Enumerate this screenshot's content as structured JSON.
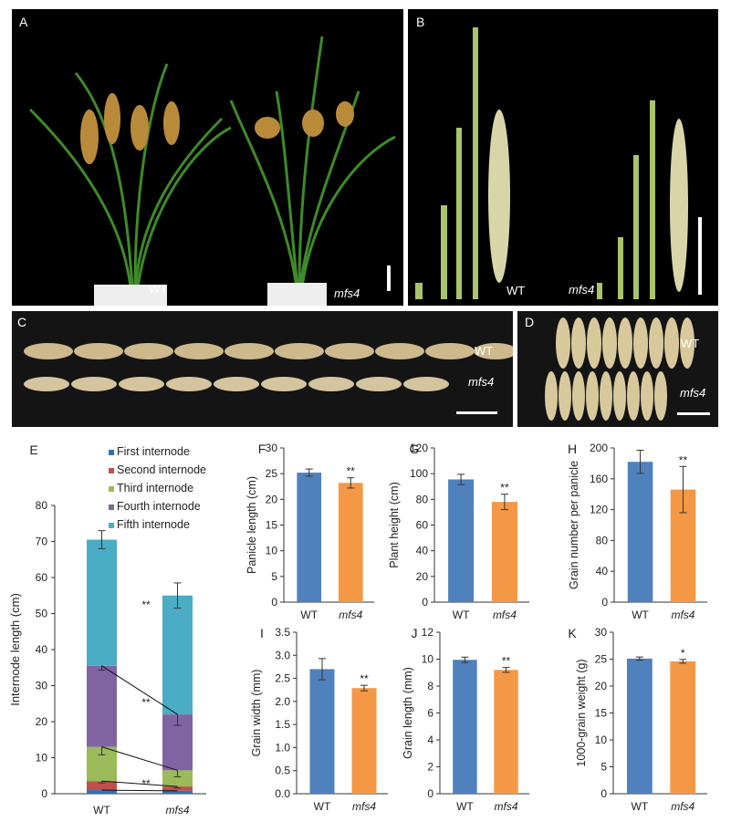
{
  "figure": {
    "panel_a": {
      "letter": "A",
      "label_wt": "WT",
      "label_mut": "mfs4"
    },
    "panel_b": {
      "letter": "B",
      "label_wt": "WT",
      "label_mut": "mfs4"
    },
    "panel_c": {
      "letter": "C",
      "label_wt": "WT",
      "label_mut": "mfs4"
    },
    "panel_d": {
      "letter": "D",
      "label_wt": "WT",
      "label_mut": "mfs4"
    },
    "colors": {
      "wt": "#4f81bd",
      "mutant": "#f59846",
      "first": "#2e75b6",
      "second": "#c0504d",
      "third": "#9bbb59",
      "fourth": "#8064a2",
      "fifth": "#4bacc6"
    }
  },
  "chart_data": [
    {
      "panel": "E",
      "type": "bar",
      "stacked": true,
      "categories": [
        "WT",
        "mfs4"
      ],
      "ylabel": "Internode length (cm)",
      "ylim": [
        0,
        80
      ],
      "yticks": [
        0,
        10,
        20,
        30,
        40,
        50,
        60,
        70,
        80
      ],
      "series": [
        {
          "name": "First internode",
          "values": [
            1.0,
            0.8
          ],
          "errors": [
            0,
            0
          ]
        },
        {
          "name": "Second internode",
          "values": [
            2.5,
            1.2
          ],
          "errors": [
            0.5,
            0.4
          ]
        },
        {
          "name": "Third internode",
          "values": [
            9.5,
            4.5
          ],
          "errors": [
            2.2,
            1.8
          ]
        },
        {
          "name": "Fourth internode",
          "values": [
            22.5,
            15.5
          ],
          "errors": [
            1.2,
            3.0
          ]
        },
        {
          "name": "Fifth  internode",
          "values": [
            35.0,
            33.0
          ],
          "errors": [
            2.5,
            3.5
          ]
        }
      ],
      "annotations": [
        "**",
        "**",
        "**"
      ]
    },
    {
      "panel": "F",
      "type": "bar",
      "categories": [
        "WT",
        "mfs4"
      ],
      "values": [
        25.2,
        23.2
      ],
      "errors": [
        0.7,
        1.0
      ],
      "ylabel": "Panicle length (cm)",
      "ylim": [
        0,
        30
      ],
      "yticks": [
        0,
        5,
        10,
        15,
        20,
        25,
        30
      ],
      "sig": "**"
    },
    {
      "panel": "G",
      "type": "bar",
      "categories": [
        "WT",
        "mfs4"
      ],
      "values": [
        95.5,
        78
      ],
      "errors": [
        4,
        6
      ],
      "ylabel": "Plant height (cm)",
      "ylim": [
        0,
        120
      ],
      "yticks": [
        0,
        20,
        40,
        60,
        80,
        100,
        120
      ],
      "sig": "**"
    },
    {
      "panel": "H",
      "type": "bar",
      "categories": [
        "WT",
        "mfs4"
      ],
      "values": [
        182,
        146
      ],
      "errors": [
        15,
        30
      ],
      "ylabel": "Grain number per panicle",
      "ylim": [
        0,
        200
      ],
      "yticks": [
        0,
        40,
        80,
        120,
        160,
        200
      ],
      "sig": "**"
    },
    {
      "panel": "I",
      "type": "bar",
      "categories": [
        "WT",
        "mfs4"
      ],
      "values": [
        2.7,
        2.29
      ],
      "errors": [
        0.23,
        0.06
      ],
      "ylabel": "Grain width (mm)",
      "ylim": [
        0,
        3.5
      ],
      "yticks": [
        "0.0",
        "0.5",
        "1.0",
        "1.5",
        "2.0",
        "2.5",
        "3.0",
        "3.5"
      ],
      "sig": "**"
    },
    {
      "panel": "J",
      "type": "bar",
      "categories": [
        "WT",
        "mfs4"
      ],
      "values": [
        9.95,
        9.2
      ],
      "errors": [
        0.2,
        0.18
      ],
      "ylabel": "Grain length (mm)",
      "ylim": [
        0,
        12
      ],
      "yticks": [
        0,
        2,
        4,
        6,
        8,
        10,
        12
      ],
      "sig": "**"
    },
    {
      "panel": "K",
      "type": "bar",
      "categories": [
        "WT",
        "mfs4"
      ],
      "values": [
        25.1,
        24.6
      ],
      "errors": [
        0.3,
        0.35
      ],
      "ylabel": "1000-grain weight (g)",
      "ylim": [
        0,
        30
      ],
      "yticks": [
        0,
        5,
        10,
        15,
        20,
        25,
        30
      ],
      "sig": "*"
    }
  ]
}
